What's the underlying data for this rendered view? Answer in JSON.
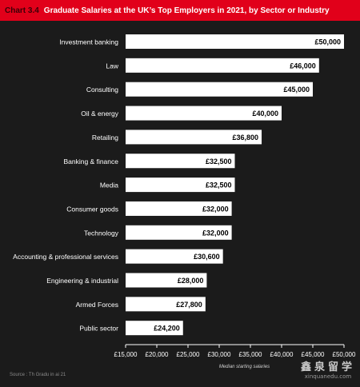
{
  "title": {
    "number": "Chart 3.4",
    "text": "Graduate Salaries at the UK’s Top Employers in 2021, by Sector or Industry"
  },
  "chart_data": {
    "type": "bar",
    "orientation": "horizontal",
    "categories": [
      "Investment banking",
      "Law",
      "Consulting",
      "Oil & energy",
      "Retailing",
      "Banking & finance",
      "Media",
      "Consumer goods",
      "Technology",
      "Accounting & professional services",
      "Engineering & industrial",
      "Armed Forces",
      "Public sector"
    ],
    "values": [
      50000,
      46000,
      45000,
      40000,
      36800,
      32500,
      32500,
      32000,
      32000,
      30600,
      28000,
      27800,
      24200
    ],
    "value_labels": [
      "£50,000",
      "£46,000",
      "£45,000",
      "£40,000",
      "£36,800",
      "£32,500",
      "£32,500",
      "£32,000",
      "£32,000",
      "£30,600",
      "£28,000",
      "£27,800",
      "£24,200"
    ],
    "xlim": [
      15000,
      50000
    ],
    "xticks": [
      "£15,000",
      "£20,000",
      "£25,000",
      "£30,000",
      "£35,000",
      "£40,000",
      "£45,000",
      "£50,000"
    ],
    "xlabel": "Median starting salaries",
    "grid": false,
    "legend": "none",
    "colors": {
      "background": "#1b1b1b",
      "bar": "#ffffff",
      "title_bar": "#e1001a",
      "text": "#ffffff"
    }
  },
  "source": "Source : Th  Gradu           in  ai 21",
  "watermark": {
    "zh": "鑫泉留学",
    "en": "xinquanedu.com"
  }
}
